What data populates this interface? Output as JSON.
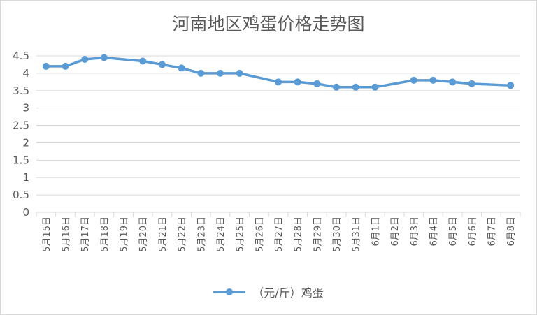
{
  "chart_data": {
    "type": "line",
    "title": "河南地区鸡蛋价格走势图",
    "categories": [
      "5月15日",
      "5月16日",
      "5月17日",
      "5月18日",
      "5月19日",
      "5月20日",
      "5月21日",
      "5月22日",
      "5月23日",
      "5月24日",
      "5月25日",
      "5月26日",
      "5月27日",
      "5月28日",
      "5月29日",
      "5月30日",
      "5月31日",
      "6月1日",
      "6月2日",
      "6月3日",
      "6月4日",
      "6月5日",
      "6月6日",
      "6月7日",
      "6月8日"
    ],
    "series": [
      {
        "name": "（元/斤）鸡蛋",
        "color": "#5b9bd5",
        "values": [
          4.2,
          4.2,
          4.4,
          4.45,
          null,
          4.35,
          4.25,
          4.15,
          4.0,
          4.0,
          4.0,
          null,
          3.75,
          3.75,
          3.7,
          3.6,
          3.6,
          3.6,
          null,
          3.8,
          3.8,
          3.75,
          3.7,
          null,
          3.65
        ]
      }
    ],
    "ylim": [
      0,
      4.5
    ],
    "yticks": [
      0,
      0.5,
      1,
      1.5,
      2,
      2.5,
      3,
      3.5,
      4,
      4.5
    ],
    "ytick_labels": [
      "0",
      "0.5",
      "1",
      "1.5",
      "2",
      "2.5",
      "3",
      "3.5",
      "4",
      "4.5"
    ],
    "gaps": "span",
    "grid": true,
    "legend": "bottom"
  }
}
